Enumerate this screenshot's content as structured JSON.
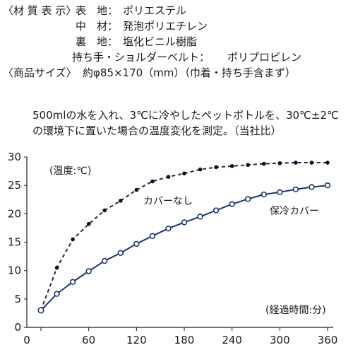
{
  "spec": {
    "label": "〈材 質 表 示〉",
    "rows": [
      {
        "part": "表　地：",
        "material": "ポリエステル"
      },
      {
        "part": "中　材：",
        "material": "発泡ポリエチレン"
      },
      {
        "part": "裏　地：",
        "material": "塩化ビニル樹脂"
      },
      {
        "part": "持ち手・ショルダーベルト：",
        "material": "ポリプロピレン"
      }
    ]
  },
  "size": {
    "label": "〈商品サイズ〉",
    "value": "約φ85×170（mm）（巾着・持ち手含まず）"
  },
  "note": {
    "line1": "500mlの水を入れ、3℃に冷やしたペットボトルを、30℃±2℃",
    "line2": "の環境下に置いた場合の温度変化を測定。（当社比）"
  },
  "chart_data": {
    "type": "line",
    "ylabel": "(温度:℃)",
    "xlabel": "(経過時間:分)",
    "xlim": [
      0,
      360
    ],
    "ylim": [
      0,
      30
    ],
    "xticks": [
      0,
      60,
      120,
      180,
      240,
      300,
      360
    ],
    "yticks": [
      0,
      5,
      10,
      15,
      20,
      25,
      30
    ],
    "grid": false,
    "series": [
      {
        "name": "カバーなし",
        "style": "dashed-filled-dots",
        "x": [
          0,
          20,
          40,
          60,
          80,
          100,
          120,
          140,
          160,
          180,
          200,
          220,
          240,
          260,
          280,
          300,
          320,
          340,
          360
        ],
        "y": [
          3,
          10.5,
          15.5,
          18.2,
          20.6,
          22.3,
          24.2,
          25.7,
          26.5,
          27.1,
          27.8,
          28.2,
          28.4,
          28.6,
          28.8,
          28.9,
          29.0,
          29.0,
          29.0
        ]
      },
      {
        "name": "保冷カバー",
        "style": "solid-open-circles",
        "x": [
          0,
          20,
          40,
          60,
          80,
          100,
          120,
          140,
          160,
          180,
          200,
          220,
          240,
          260,
          280,
          300,
          320,
          340,
          360
        ],
        "y": [
          3,
          5.9,
          8.0,
          9.9,
          11.7,
          13.1,
          14.7,
          16.1,
          17.4,
          18.5,
          19.5,
          20.6,
          21.7,
          22.6,
          23.4,
          23.8,
          24.3,
          24.7,
          25.0
        ]
      }
    ]
  }
}
